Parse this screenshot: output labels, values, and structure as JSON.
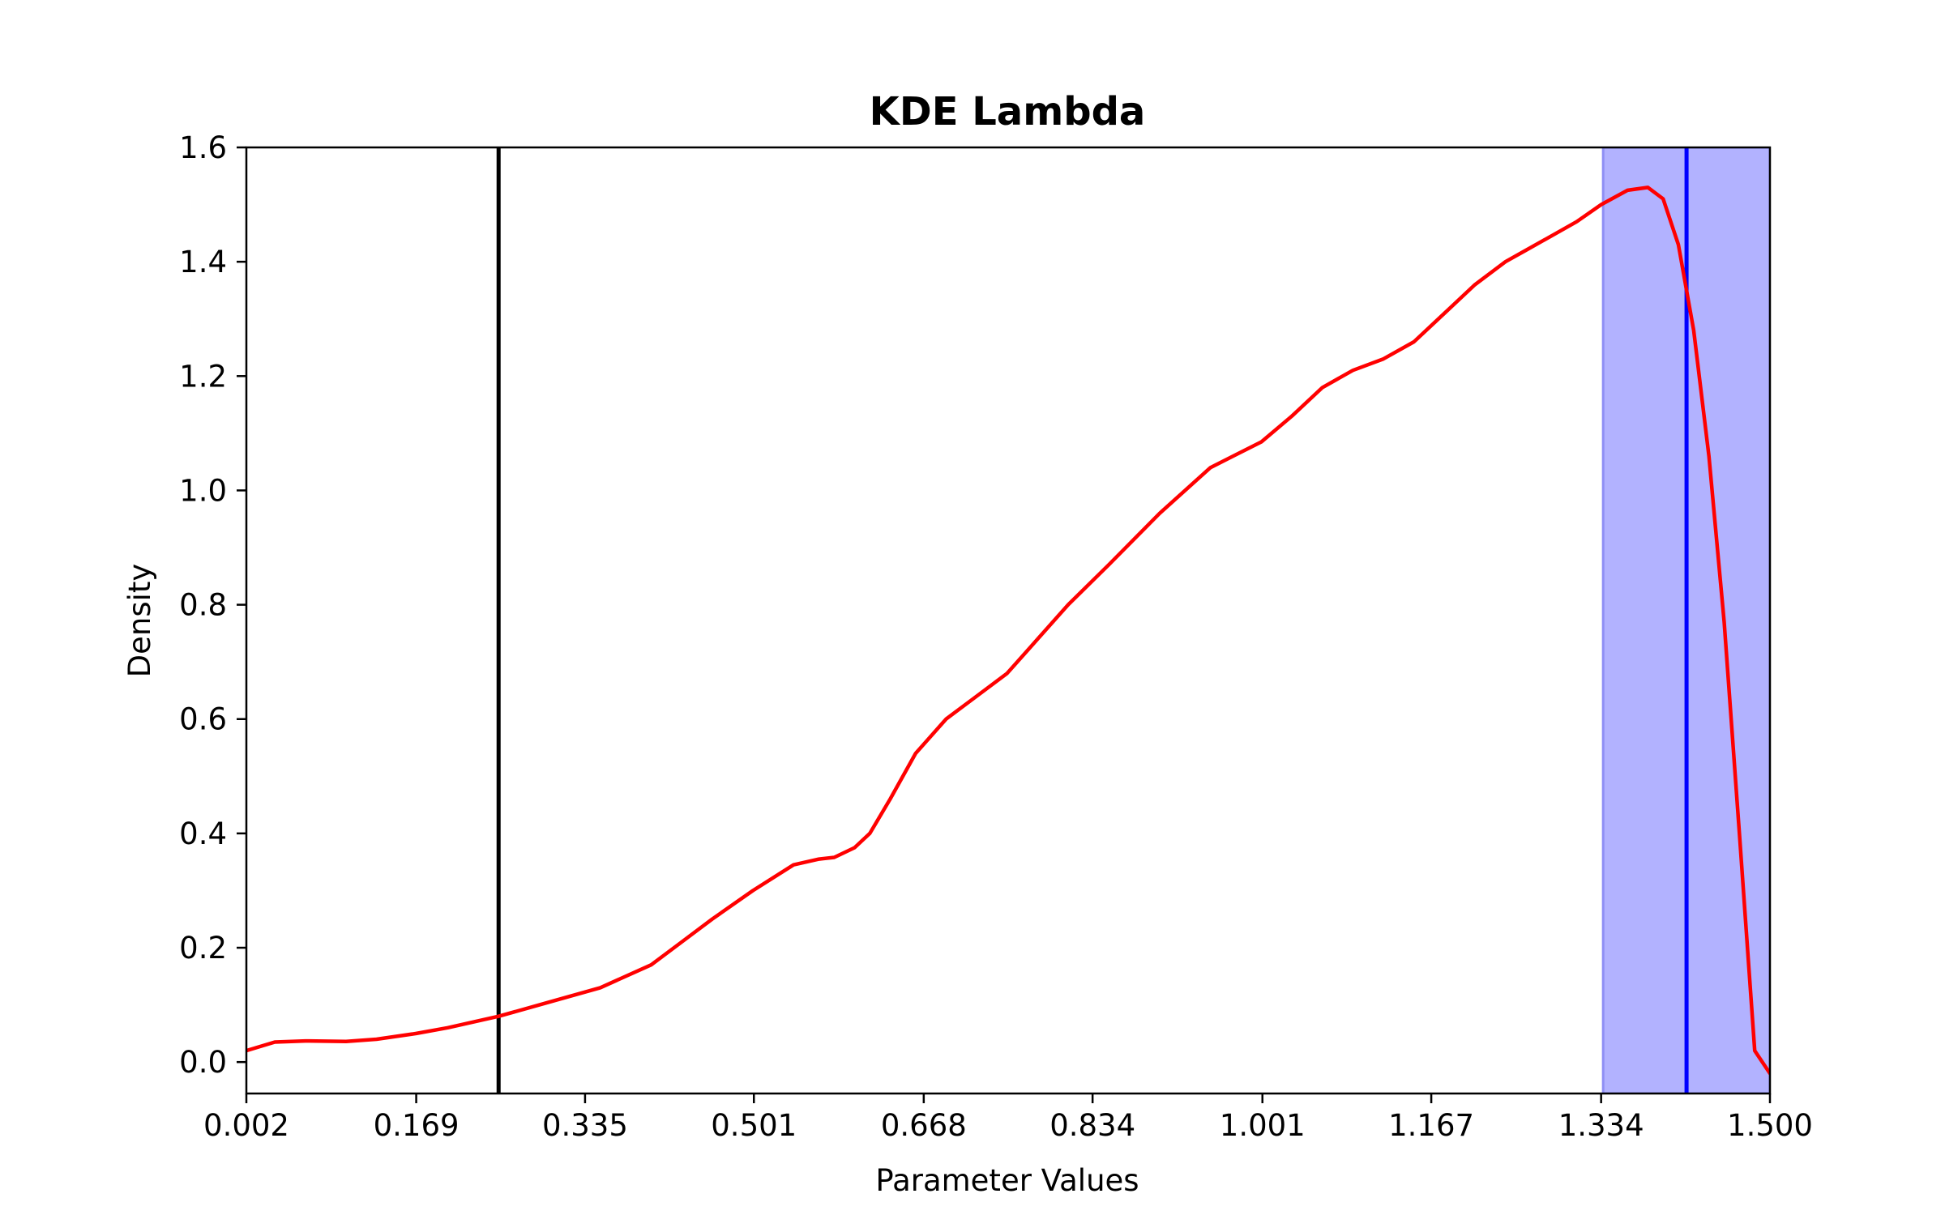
{
  "chart_data": {
    "type": "line",
    "title": "KDE Lambda",
    "xlabel": "Parameter Values",
    "ylabel": "Density",
    "xlim": [
      0.002,
      1.5
    ],
    "ylim": [
      -0.055,
      1.6
    ],
    "x_ticks": [
      0.002,
      0.169,
      0.335,
      0.501,
      0.668,
      0.834,
      1.001,
      1.167,
      1.334,
      1.5
    ],
    "x_tick_labels": [
      "0.002",
      "0.169",
      "0.335",
      "0.501",
      "0.668",
      "0.834",
      "1.001",
      "1.167",
      "1.334",
      "1.500"
    ],
    "y_ticks": [
      0.0,
      0.2,
      0.4,
      0.6,
      0.8,
      1.0,
      1.2,
      1.4,
      1.6
    ],
    "y_tick_labels": [
      "0.0",
      "0.2",
      "0.4",
      "0.6",
      "0.8",
      "1.0",
      "1.2",
      "1.4",
      "1.6"
    ],
    "grid": false,
    "series": [
      {
        "color": "#ff0000",
        "x": [
          0.002,
          0.03,
          0.06,
          0.1,
          0.13,
          0.169,
          0.2,
          0.25,
          0.3,
          0.35,
          0.4,
          0.43,
          0.46,
          0.5,
          0.54,
          0.565,
          0.58,
          0.6,
          0.615,
          0.635,
          0.66,
          0.69,
          0.72,
          0.75,
          0.78,
          0.81,
          0.85,
          0.9,
          0.95,
          1.0,
          1.03,
          1.06,
          1.09,
          1.12,
          1.15,
          1.18,
          1.21,
          1.24,
          1.26,
          1.28,
          1.31,
          1.334,
          1.36,
          1.38,
          1.395,
          1.41,
          1.425,
          1.44,
          1.455,
          1.47,
          1.485,
          1.5
        ],
        "y": [
          0.02,
          0.035,
          0.037,
          0.036,
          0.04,
          0.05,
          0.06,
          0.08,
          0.105,
          0.13,
          0.17,
          0.21,
          0.25,
          0.3,
          0.345,
          0.355,
          0.358,
          0.375,
          0.4,
          0.46,
          0.54,
          0.6,
          0.64,
          0.68,
          0.74,
          0.8,
          0.87,
          0.96,
          1.04,
          1.085,
          1.13,
          1.18,
          1.21,
          1.23,
          1.26,
          1.31,
          1.36,
          1.4,
          1.42,
          1.44,
          1.47,
          1.5,
          1.525,
          1.53,
          1.51,
          1.43,
          1.28,
          1.06,
          0.77,
          0.4,
          0.02,
          -0.02
        ]
      }
    ],
    "vertical_lines": [
      {
        "x": 0.25,
        "color": "#000000"
      },
      {
        "x": 1.418,
        "color": "#0000ff"
      }
    ],
    "shaded_regions": [
      {
        "x_start": 1.336,
        "x_end": 1.5,
        "color": "#b2b2ff"
      }
    ]
  }
}
